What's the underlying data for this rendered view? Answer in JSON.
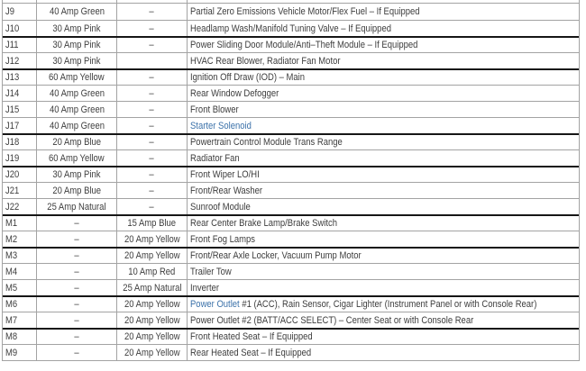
{
  "colors": {
    "text": "#3d3d3d",
    "link": "#3b71a9",
    "border": "#a3a3a3",
    "border_dark": "#161616"
  },
  "table": {
    "rows": [
      {
        "id": "J9",
        "cartridge": "40 Amp Green",
        "mini": "–",
        "divider": "normal",
        "description": [
          {
            "text": "Partial Zero Emissions Vehicle Motor/Flex Fuel – If Equipped",
            "link": false
          }
        ]
      },
      {
        "id": "J10",
        "cartridge": "30 Amp Pink",
        "mini": "–",
        "divider": "normal",
        "description": [
          {
            "text": "Headlamp Wash/Manifold Tuning Valve – If Equipped",
            "link": false
          }
        ]
      },
      {
        "id": "J11",
        "cartridge": "30 Amp Pink",
        "mini": "–",
        "divider": "dark",
        "description": [
          {
            "text": "Power Sliding Door Module/Anti–Theft Module – If Equipped",
            "link": false
          }
        ]
      },
      {
        "id": "J12",
        "cartridge": "30 Amp Pink",
        "mini": "",
        "divider": "normal",
        "description": [
          {
            "text": "HVAC Rear Blower, Radiator Fan Motor",
            "link": false
          }
        ]
      },
      {
        "id": "J13",
        "cartridge": "60 Amp Yellow",
        "mini": "–",
        "divider": "dark",
        "description": [
          {
            "text": "Ignition Off Draw (IOD) – Main",
            "link": false
          }
        ]
      },
      {
        "id": "J14",
        "cartridge": "40 Amp Green",
        "mini": "–",
        "divider": "normal",
        "description": [
          {
            "text": "Rear Window Defogger",
            "link": false
          }
        ]
      },
      {
        "id": "J15",
        "cartridge": "40 Amp Green",
        "mini": "–",
        "divider": "normal",
        "description": [
          {
            "text": "Front Blower",
            "link": false
          }
        ]
      },
      {
        "id": "J17",
        "cartridge": "40 Amp Green",
        "mini": "–",
        "divider": "normal",
        "description": [
          {
            "text": "Starter Solenoid",
            "link": true
          }
        ]
      },
      {
        "id": "J18",
        "cartridge": "20 Amp Blue",
        "mini": "–",
        "divider": "dark",
        "description": [
          {
            "text": "Powertrain Control Module Trans Range",
            "link": false
          }
        ]
      },
      {
        "id": "J19",
        "cartridge": "60 Amp Yellow",
        "mini": "–",
        "divider": "normal",
        "description": [
          {
            "text": "Radiator Fan",
            "link": false
          }
        ]
      },
      {
        "id": "J20",
        "cartridge": "30 Amp Pink",
        "mini": "–",
        "divider": "dark",
        "description": [
          {
            "text": "Front Wiper LO/HI",
            "link": false
          }
        ]
      },
      {
        "id": "J21",
        "cartridge": "20 Amp Blue",
        "mini": "–",
        "divider": "normal",
        "description": [
          {
            "text": "Front/Rear Washer",
            "link": false
          }
        ]
      },
      {
        "id": "J22",
        "cartridge": "25 Amp Natural",
        "mini": "–",
        "divider": "normal",
        "description": [
          {
            "text": "Sunroof Module",
            "link": false
          }
        ]
      },
      {
        "id": "M1",
        "cartridge": "–",
        "mini": "15 Amp Blue",
        "divider": "dark",
        "description": [
          {
            "text": "Rear Center Brake Lamp/Brake Switch",
            "link": false
          }
        ]
      },
      {
        "id": "M2",
        "cartridge": "–",
        "mini": "20 Amp Yellow",
        "divider": "normal",
        "description": [
          {
            "text": "Front Fog Lamps",
            "link": false
          }
        ]
      },
      {
        "id": "M3",
        "cartridge": "–",
        "mini": "20 Amp Yellow",
        "divider": "dark",
        "description": [
          {
            "text": "Front/Rear Axle Locker, Vacuum Pump Motor",
            "link": false
          }
        ]
      },
      {
        "id": "M4",
        "cartridge": "–",
        "mini": "10 Amp Red",
        "divider": "normal",
        "description": [
          {
            "text": "Trailer Tow",
            "link": false
          }
        ]
      },
      {
        "id": "M5",
        "cartridge": "–",
        "mini": "25 Amp Natural",
        "divider": "normal",
        "description": [
          {
            "text": "Inverter",
            "link": false
          }
        ]
      },
      {
        "id": "M6",
        "cartridge": "–",
        "mini": "20 Amp Yellow",
        "divider": "dark",
        "description": [
          {
            "text": "Power Outlet",
            "link": true
          },
          {
            "text": " #1 (ACC), Rain Sensor, Cigar Lighter (Instrument Panel or with Console Rear)",
            "link": false
          }
        ]
      },
      {
        "id": "M7",
        "cartridge": "–",
        "mini": "20 Amp Yellow",
        "divider": "normal",
        "description": [
          {
            "text": "Power Outlet #2 (BATT/ACC SELECT) – Center Seat or with Console Rear",
            "link": false
          }
        ]
      },
      {
        "id": "M8",
        "cartridge": "–",
        "mini": "20 Amp Yellow",
        "divider": "dark",
        "description": [
          {
            "text": "Front Heated Seat – If Equipped",
            "link": false
          }
        ]
      },
      {
        "id": "M9",
        "cartridge": "–",
        "mini": "20 Amp Yellow",
        "divider": "normal",
        "description": [
          {
            "text": "Rear Heated Seat – If Equipped",
            "link": false
          }
        ]
      }
    ]
  }
}
